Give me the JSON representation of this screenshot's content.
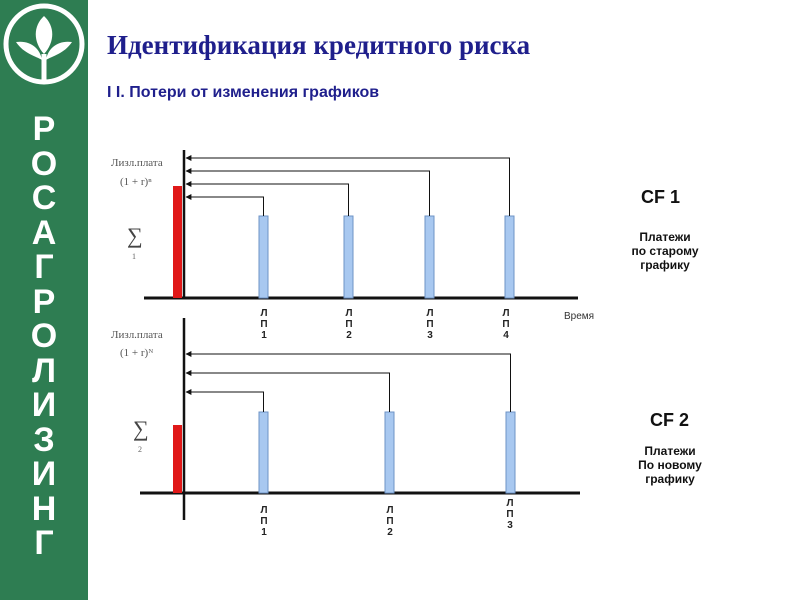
{
  "sidebar": {
    "brand_letters": [
      "Р",
      "О",
      "С",
      "А",
      "Г",
      "Р",
      "О",
      "Л",
      "И",
      "З",
      "И",
      "Н",
      "Г"
    ]
  },
  "title": "Идентификация кредитного риска",
  "subtitle": "I I.  Потери от изменения графиков",
  "colors": {
    "sidebar": "#2e7d52",
    "title": "#1f1f8c",
    "bar_fill": "#a8c8f0",
    "bar_stroke": "#6e93c6",
    "red_bar": "#e01818",
    "axis": "#111111"
  },
  "time_label": "Время",
  "panels": [
    {
      "name": "cf1",
      "cf_title": "CF 1",
      "cf_desc": [
        "Платежи",
        "по старому",
        "графику"
      ],
      "formula_top": "Лизл.плата",
      "formula_bottom": "(1 + r)ⁿ",
      "sigma_sub": "1",
      "payment_labels": [
        [
          "Л",
          "П",
          "1"
        ],
        [
          "Л",
          "П",
          "2"
        ],
        [
          "Л",
          "П",
          "3"
        ],
        [
          "Л",
          "П",
          "4"
        ]
      ]
    },
    {
      "name": "cf2",
      "cf_title": "CF 2",
      "cf_desc": [
        "Платежи",
        "По новому",
        "графику"
      ],
      "formula_top": "Лизл.плата",
      "formula_bottom": "(1 + r)ᴺ",
      "sigma_sub": "2",
      "payment_labels": [
        [
          "Л",
          "П",
          "1"
        ],
        [
          "Л",
          "П",
          "2"
        ],
        [
          "Л",
          "П",
          "3"
        ]
      ]
    }
  ]
}
